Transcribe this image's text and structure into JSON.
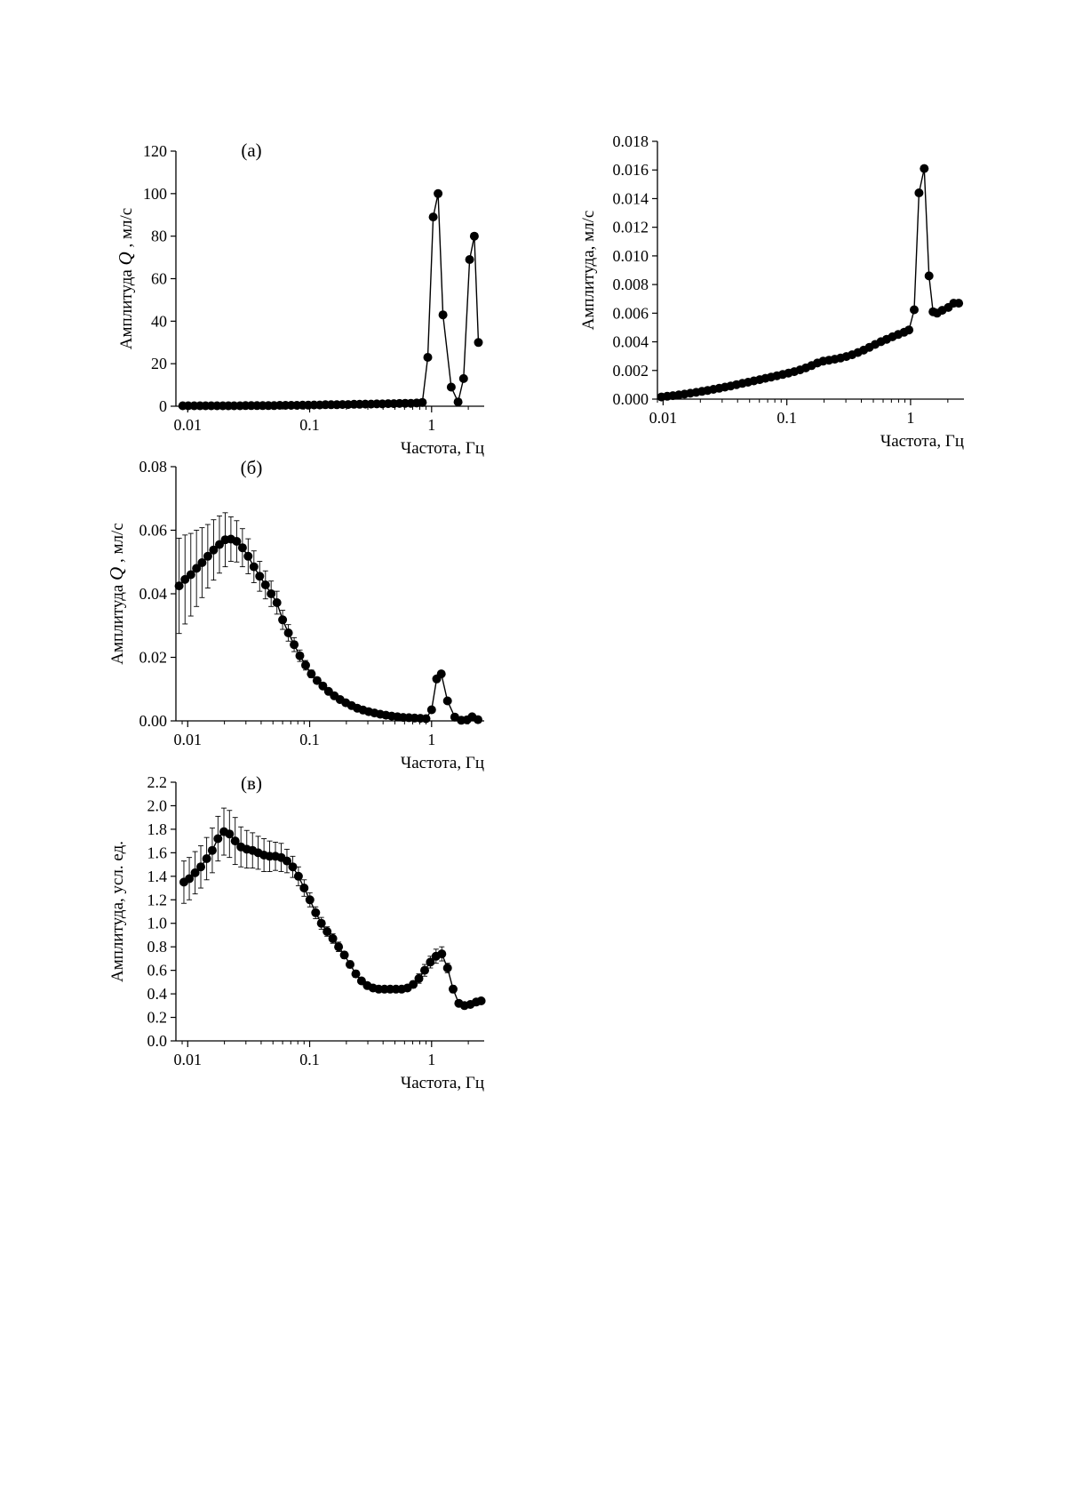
{
  "chart_data": [
    {
      "panel_id": "a",
      "type": "line",
      "panel_label": "(а)",
      "xlabel": "Частота, Гц",
      "ylabel_prefix": "Амплитуда ",
      "ylabel_italic": "Q",
      "ylabel_suffix": " , мл/с",
      "x_scale": "log",
      "xlim": [
        0.008,
        2.7
      ],
      "ylim": [
        0,
        120
      ],
      "x_ticks": [
        {
          "value": 0.01,
          "label": "0.01"
        },
        {
          "value": 0.1,
          "label": "0.1"
        },
        {
          "value": 1,
          "label": "1"
        }
      ],
      "y_ticks": [
        {
          "value": 0,
          "label": "0"
        },
        {
          "value": 20,
          "label": "20"
        },
        {
          "value": 40,
          "label": "40"
        },
        {
          "value": 60,
          "label": "60"
        },
        {
          "value": 80,
          "label": "80"
        },
        {
          "value": 100,
          "label": "100"
        },
        {
          "value": 120,
          "label": "120"
        }
      ],
      "grid": false,
      "series": [
        {
          "x": [
            0.0091,
            0.0101,
            0.0113,
            0.0126,
            0.014,
            0.0156,
            0.0174,
            0.0194,
            0.0216,
            0.024,
            0.0268,
            0.0298,
            0.0332,
            0.037,
            0.0412,
            0.0459,
            0.0511,
            0.0569,
            0.0634,
            0.0706,
            0.0786,
            0.0875,
            0.0975,
            0.1086,
            0.121,
            0.1347,
            0.15,
            0.167,
            0.186,
            0.207,
            0.231,
            0.257,
            0.286,
            0.319,
            0.355,
            0.395,
            0.44,
            0.49,
            0.546,
            0.608,
            0.677,
            0.754,
            0.84,
            0.93,
            1.03,
            1.13,
            1.24,
            1.45,
            1.65,
            1.83,
            2.05,
            2.24,
            2.42
          ],
          "y": [
            0.2,
            0.2,
            0.2,
            0.2,
            0.2,
            0.2,
            0.2,
            0.2,
            0.2,
            0.2,
            0.2,
            0.3,
            0.3,
            0.3,
            0.3,
            0.3,
            0.3,
            0.4,
            0.4,
            0.4,
            0.4,
            0.5,
            0.5,
            0.6,
            0.6,
            0.7,
            0.7,
            0.7,
            0.8,
            0.8,
            0.9,
            0.9,
            1.0,
            1.0,
            1.1,
            1.1,
            1.2,
            1.2,
            1.3,
            1.4,
            1.4,
            1.5,
            1.8,
            23,
            89,
            100,
            43,
            9,
            2,
            13,
            69,
            80,
            30
          ]
        }
      ],
      "error_bars": false
    },
    {
      "panel_id": "r",
      "type": "line",
      "panel_label": "",
      "xlabel": "Частота, Гц",
      "ylabel_prefix": "Амплитуда, мл/с",
      "ylabel_italic": "",
      "ylabel_suffix": "",
      "x_scale": "log",
      "xlim": [
        0.009,
        2.7
      ],
      "ylim": [
        0,
        0.018
      ],
      "x_ticks": [
        {
          "value": 0.01,
          "label": "0.01"
        },
        {
          "value": 0.1,
          "label": "0.1"
        },
        {
          "value": 1,
          "label": "1"
        }
      ],
      "y_ticks": [
        {
          "value": 0,
          "label": "0.000"
        },
        {
          "value": 0.002,
          "label": "0.002"
        },
        {
          "value": 0.004,
          "label": "0.004"
        },
        {
          "value": 0.006,
          "label": "0.006"
        },
        {
          "value": 0.008,
          "label": "0.008"
        },
        {
          "value": 0.01,
          "label": "0.010"
        },
        {
          "value": 0.012,
          "label": "0.012"
        },
        {
          "value": 0.014,
          "label": "0.014"
        },
        {
          "value": 0.016,
          "label": "0.016"
        },
        {
          "value": 0.018,
          "label": "0.018"
        }
      ],
      "grid": false,
      "series": [
        {
          "x": [
            0.0097,
            0.0108,
            0.012,
            0.0134,
            0.0149,
            0.0166,
            0.0185,
            0.0206,
            0.0229,
            0.0255,
            0.0284,
            0.0316,
            0.0352,
            0.0392,
            0.0437,
            0.0486,
            0.0541,
            0.0603,
            0.0671,
            0.0747,
            0.0832,
            0.0926,
            0.1031,
            0.1148,
            0.1279,
            0.1424,
            0.1586,
            0.1766,
            0.1966,
            0.219,
            0.2438,
            0.2715,
            0.3024,
            0.3367,
            0.375,
            0.4175,
            0.465,
            0.517,
            0.576,
            0.641,
            0.714,
            0.795,
            0.886,
            0.97,
            1.07,
            1.17,
            1.29,
            1.41,
            1.52,
            1.64,
            1.8,
            2.02,
            2.23,
            2.45
          ],
          "y": [
            0.00015,
            0.0002,
            0.00024,
            0.00029,
            0.00035,
            0.00041,
            0.00047,
            0.00054,
            0.00061,
            0.00068,
            0.00076,
            0.00084,
            0.00092,
            0.00101,
            0.0011,
            0.00118,
            0.00127,
            0.00136,
            0.00145,
            0.00154,
            0.00163,
            0.00172,
            0.00182,
            0.00192,
            0.00204,
            0.00218,
            0.00234,
            0.00252,
            0.00265,
            0.00272,
            0.00279,
            0.00287,
            0.00297,
            0.0031,
            0.00325,
            0.00342,
            0.00362,
            0.00382,
            0.00401,
            0.00418,
            0.00435,
            0.00451,
            0.00467,
            0.00483,
            0.00624,
            0.0144,
            0.0161,
            0.0086,
            0.0061,
            0.006,
            0.0062,
            0.0064,
            0.0067,
            0.0067
          ]
        }
      ],
      "error_bars": false
    },
    {
      "panel_id": "b",
      "type": "line",
      "panel_label": "(б)",
      "xlabel": "Частота, Гц",
      "ylabel_prefix": "Амплитуда ",
      "ylabel_italic": "Q",
      "ylabel_suffix": " , мл/с",
      "x_scale": "log",
      "xlim": [
        0.008,
        2.7
      ],
      "ylim": [
        0,
        0.08
      ],
      "x_ticks": [
        {
          "value": 0.01,
          "label": "0.01"
        },
        {
          "value": 0.1,
          "label": "0.1"
        },
        {
          "value": 1,
          "label": "1"
        }
      ],
      "y_ticks": [
        {
          "value": 0,
          "label": "0.00"
        },
        {
          "value": 0.02,
          "label": "0.02"
        },
        {
          "value": 0.04,
          "label": "0.04"
        },
        {
          "value": 0.06,
          "label": "0.06"
        },
        {
          "value": 0.08,
          "label": "0.08"
        }
      ],
      "grid": false,
      "series": [
        {
          "x": [
            0.0085,
            0.0095,
            0.0106,
            0.0118,
            0.0131,
            0.0146,
            0.0163,
            0.0182,
            0.0203,
            0.0226,
            0.0252,
            0.0281,
            0.0313,
            0.0349,
            0.0389,
            0.0434,
            0.0483,
            0.0539,
            0.06,
            0.0669,
            0.0746,
            0.0831,
            0.0926,
            0.1032,
            0.115,
            0.1282,
            0.1429,
            0.1593,
            0.1775,
            0.1978,
            0.2205,
            0.2457,
            0.2738,
            0.3051,
            0.3401,
            0.379,
            0.4224,
            0.4708,
            0.5247,
            0.5847,
            0.6516,
            0.7262,
            0.8093,
            0.9,
            1.0,
            1.1,
            1.2,
            1.35,
            1.55,
            1.75,
            1.95,
            2.15,
            2.4
          ],
          "y": [
            0.0425,
            0.0445,
            0.046,
            0.048,
            0.0498,
            0.0518,
            0.0538,
            0.0555,
            0.057,
            0.0572,
            0.0565,
            0.0545,
            0.0518,
            0.0485,
            0.0455,
            0.0428,
            0.04,
            0.0372,
            0.0318,
            0.0277,
            0.024,
            0.0205,
            0.0175,
            0.0148,
            0.0127,
            0.011,
            0.0093,
            0.0079,
            0.0067,
            0.0057,
            0.0048,
            0.004,
            0.0034,
            0.0029,
            0.0025,
            0.0021,
            0.0018,
            0.0015,
            0.0013,
            0.0011,
            0.001,
            0.0009,
            0.0008,
            0.0007,
            0.0035,
            0.0132,
            0.0148,
            0.0063,
            0.0012,
            0.0002,
            0.0003,
            0.0013,
            0.0004
          ],
          "err": [
            0.015,
            0.014,
            0.013,
            0.012,
            0.011,
            0.01,
            0.0095,
            0.009,
            0.0085,
            0.007,
            0.0065,
            0.006,
            0.0055,
            0.005,
            0.0047,
            0.0044,
            0.004,
            0.0036,
            0.003,
            0.0026,
            0.0022,
            0.0018,
            0.0015,
            0.0012,
            0.001,
            0.0008,
            0.0007,
            0.0006,
            0.0005,
            0.0004,
            0.0003,
            0.0003,
            0.0002,
            0.0002,
            0.0002,
            0.0001,
            0.0001,
            0.0001,
            0.0001,
            0.0001,
            0.0001,
            0.0001,
            0.0001,
            0.0001,
            0.0005,
            0.0009,
            0.0009,
            0.0006,
            0.0002,
            0.0001,
            0.0001,
            0.0002,
            0.0001
          ]
        }
      ],
      "error_bars": true
    },
    {
      "panel_id": "v",
      "type": "line",
      "panel_label": "(в)",
      "xlabel": "Частота, Гц",
      "ylabel_prefix": "Амплитуда, усл. ед.",
      "ylabel_italic": "",
      "ylabel_suffix": "",
      "x_scale": "log",
      "xlim": [
        0.008,
        2.7
      ],
      "ylim": [
        0,
        2.2
      ],
      "x_ticks": [
        {
          "value": 0.01,
          "label": "0.01"
        },
        {
          "value": 0.1,
          "label": "0.1"
        },
        {
          "value": 1,
          "label": "1"
        }
      ],
      "y_ticks": [
        {
          "value": 0,
          "label": "0.0"
        },
        {
          "value": 0.2,
          "label": "0.2"
        },
        {
          "value": 0.4,
          "label": "0.4"
        },
        {
          "value": 0.6,
          "label": "0.6"
        },
        {
          "value": 0.8,
          "label": "0.8"
        },
        {
          "value": 1.0,
          "label": "1.0"
        },
        {
          "value": 1.2,
          "label": "1.2"
        },
        {
          "value": 1.4,
          "label": "1.4"
        },
        {
          "value": 1.6,
          "label": "1.6"
        },
        {
          "value": 1.8,
          "label": "1.8"
        },
        {
          "value": 2.0,
          "label": "2.0"
        },
        {
          "value": 2.2,
          "label": "2.2"
        }
      ],
      "grid": false,
      "series": [
        {
          "x": [
            0.0093,
            0.0103,
            0.0115,
            0.0128,
            0.0143,
            0.0159,
            0.0177,
            0.0198,
            0.022,
            0.0245,
            0.0273,
            0.0305,
            0.034,
            0.0378,
            0.0422,
            0.047,
            0.0524,
            0.0584,
            0.0651,
            0.0726,
            0.0809,
            0.0901,
            0.1004,
            0.1119,
            0.1247,
            0.139,
            0.1549,
            0.1726,
            0.1924,
            0.2144,
            0.239,
            0.2663,
            0.2968,
            0.3308,
            0.3686,
            0.4108,
            0.4578,
            0.5102,
            0.5686,
            0.6337,
            0.7062,
            0.787,
            0.877,
            0.977,
            1.088,
            1.212,
            1.35,
            1.5,
            1.67,
            1.86,
            2.08,
            2.32,
            2.55
          ],
          "y": [
            1.35,
            1.38,
            1.43,
            1.48,
            1.55,
            1.62,
            1.72,
            1.78,
            1.76,
            1.7,
            1.65,
            1.63,
            1.62,
            1.6,
            1.58,
            1.57,
            1.57,
            1.56,
            1.53,
            1.48,
            1.4,
            1.3,
            1.2,
            1.09,
            1.0,
            0.93,
            0.87,
            0.8,
            0.73,
            0.65,
            0.57,
            0.51,
            0.47,
            0.45,
            0.44,
            0.44,
            0.44,
            0.44,
            0.44,
            0.45,
            0.48,
            0.53,
            0.6,
            0.67,
            0.72,
            0.74,
            0.62,
            0.44,
            0.32,
            0.3,
            0.31,
            0.33,
            0.34
          ],
          "err": [
            0.18,
            0.18,
            0.18,
            0.18,
            0.18,
            0.19,
            0.19,
            0.2,
            0.2,
            0.2,
            0.17,
            0.16,
            0.15,
            0.14,
            0.14,
            0.13,
            0.12,
            0.12,
            0.1,
            0.09,
            0.08,
            0.07,
            0.06,
            0.05,
            0.05,
            0.04,
            0.04,
            0.04,
            0.03,
            0.03,
            0.03,
            0.02,
            0.02,
            0.02,
            0.02,
            0.02,
            0.02,
            0.02,
            0.02,
            0.02,
            0.03,
            0.04,
            0.05,
            0.05,
            0.06,
            0.06,
            0.04,
            0.03,
            0.02,
            0.02,
            0.02,
            0.02,
            0.02
          ]
        }
      ],
      "error_bars": true
    }
  ]
}
